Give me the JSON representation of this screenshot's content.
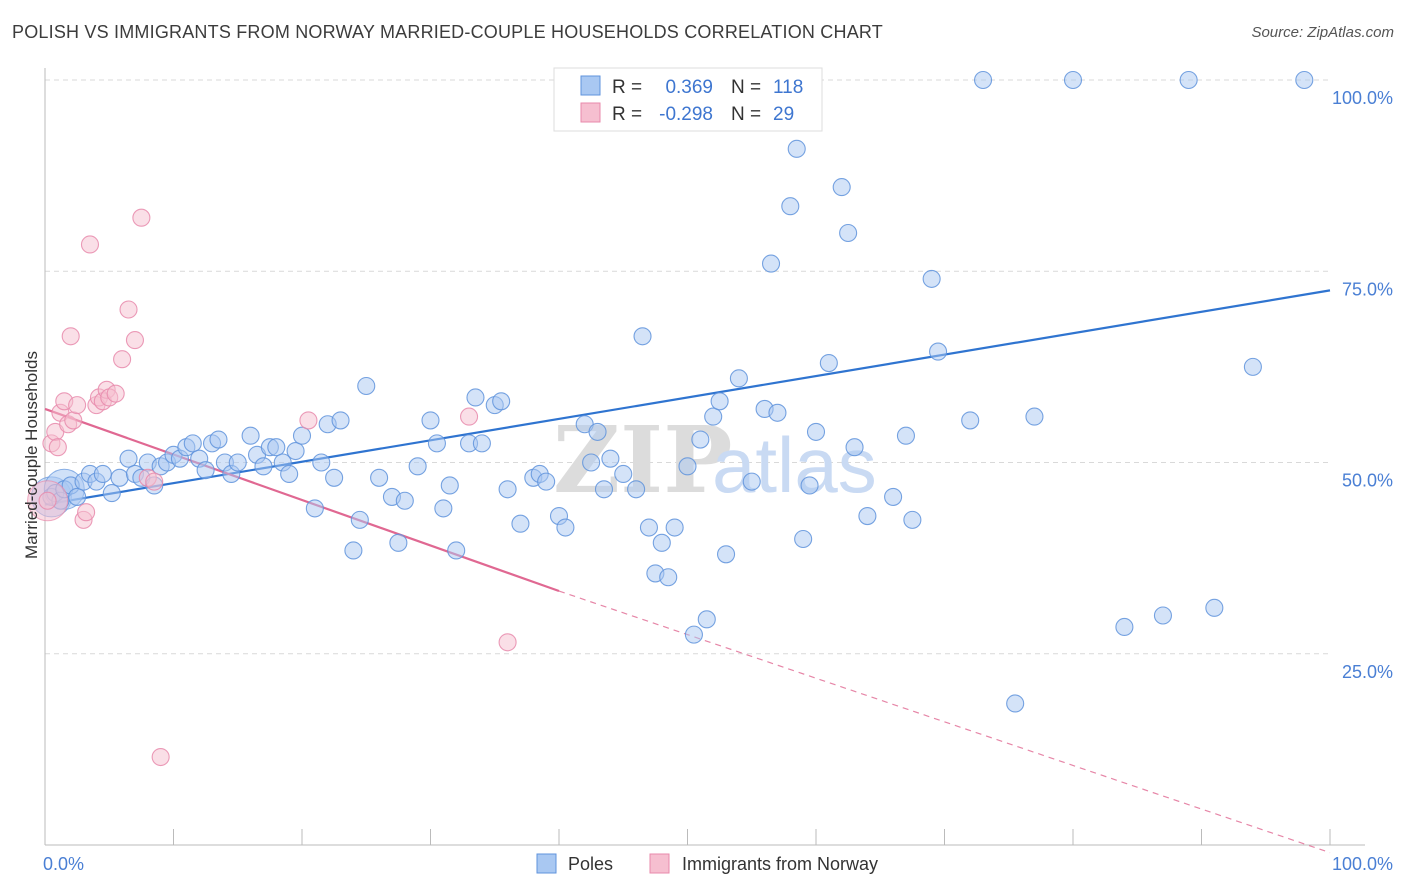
{
  "title": "POLISH VS IMMIGRANTS FROM NORWAY MARRIED-COUPLE HOUSEHOLDS CORRELATION CHART",
  "source": "Source: ZipAtlas.com",
  "watermark": {
    "zip": "ZIP",
    "atlas": "atlas"
  },
  "colors": {
    "blue_fill": "#a9c8f2",
    "blue_stroke": "#5f93dc",
    "blue_line": "#2f74d0",
    "pink_fill": "#f6bfd0",
    "pink_stroke": "#e88aab",
    "pink_line": "#e06892",
    "grid": "#d9d9d9",
    "tick_label": "#4a7fd4"
  },
  "legend": {
    "rows": [
      {
        "r_label": "R =",
        "r_value": "0.369",
        "n_label": "N =",
        "n_value": "118",
        "color": "blue"
      },
      {
        "r_label": "R =",
        "r_value": "-0.298",
        "n_label": "N =",
        "n_value": "29",
        "color": "pink"
      }
    ]
  },
  "chart_data": {
    "type": "scatter",
    "title": "POLISH VS IMMIGRANTS FROM NORWAY MARRIED-COUPLE HOUSEHOLDS CORRELATION CHART",
    "xlabel": "",
    "ylabel": "Married-couple Households",
    "xlim": [
      0,
      100
    ],
    "ylim": [
      0,
      100
    ],
    "x_tick_labels": [
      "0.0%",
      "100.0%"
    ],
    "y_tick_labels": [
      "25.0%",
      "50.0%",
      "75.0%",
      "100.0%"
    ],
    "y_ticks": [
      25,
      50,
      75,
      100
    ],
    "grid": true,
    "legend_position": "top-center",
    "series": [
      {
        "name": "Poles",
        "color": "blue",
        "regression": {
          "x0": 0,
          "y0": 44.5,
          "x1": 100,
          "y1": 72.5,
          "dashed_from": null
        },
        "points": [
          [
            0.5,
            45.5
          ],
          [
            0.8,
            46
          ],
          [
            1.2,
            45
          ],
          [
            1.5,
            46.5
          ],
          [
            2,
            47
          ],
          [
            2.5,
            45.5
          ],
          [
            3,
            47.5
          ],
          [
            3.5,
            48.5
          ],
          [
            4,
            47.5
          ],
          [
            4.5,
            48.5
          ],
          [
            5.2,
            46
          ],
          [
            5.8,
            48
          ],
          [
            6.5,
            50.5
          ],
          [
            7,
            48.5
          ],
          [
            7.5,
            48
          ],
          [
            8,
            50
          ],
          [
            8.5,
            47
          ],
          [
            9,
            49.5
          ],
          [
            9.5,
            50
          ],
          [
            10,
            51
          ],
          [
            10.5,
            50.5
          ],
          [
            11,
            52
          ],
          [
            11.5,
            52.5
          ],
          [
            12,
            50.5
          ],
          [
            12.5,
            49
          ],
          [
            13,
            52.5
          ],
          [
            13.5,
            53
          ],
          [
            14,
            50
          ],
          [
            14.5,
            48.5
          ],
          [
            15,
            50
          ],
          [
            16,
            53.5
          ],
          [
            16.5,
            51
          ],
          [
            17,
            49.5
          ],
          [
            17.5,
            52
          ],
          [
            18,
            52
          ],
          [
            18.5,
            50
          ],
          [
            19,
            48.5
          ],
          [
            19.5,
            51.5
          ],
          [
            20,
            53.5
          ],
          [
            21,
            44
          ],
          [
            21.5,
            50
          ],
          [
            22,
            55
          ],
          [
            22.5,
            48
          ],
          [
            23,
            55.5
          ],
          [
            24,
            38.5
          ],
          [
            24.5,
            42.5
          ],
          [
            25,
            60
          ],
          [
            26,
            48
          ],
          [
            27,
            45.5
          ],
          [
            27.5,
            39.5
          ],
          [
            28,
            45
          ],
          [
            29,
            49.5
          ],
          [
            30,
            55.5
          ],
          [
            30.5,
            52.5
          ],
          [
            31,
            44
          ],
          [
            31.5,
            47
          ],
          [
            32,
            38.5
          ],
          [
            33,
            52.5
          ],
          [
            33.5,
            58.5
          ],
          [
            34,
            52.5
          ],
          [
            35,
            57.5
          ],
          [
            35.5,
            58
          ],
          [
            36,
            46.5
          ],
          [
            37,
            42
          ],
          [
            38,
            48
          ],
          [
            38.5,
            48.5
          ],
          [
            39,
            47.5
          ],
          [
            40,
            43
          ],
          [
            40.5,
            41.5
          ],
          [
            42,
            55
          ],
          [
            42.5,
            50
          ],
          [
            43,
            54
          ],
          [
            43.5,
            46.5
          ],
          [
            44,
            50.5
          ],
          [
            45,
            48.5
          ],
          [
            46,
            46.5
          ],
          [
            46.5,
            66.5
          ],
          [
            47,
            41.5
          ],
          [
            47.5,
            35.5
          ],
          [
            48,
            39.5
          ],
          [
            48.5,
            35
          ],
          [
            49,
            41.5
          ],
          [
            50,
            49.5
          ],
          [
            50.5,
            27.5
          ],
          [
            51,
            53
          ],
          [
            51.5,
            29.5
          ],
          [
            52,
            56
          ],
          [
            52.5,
            58
          ],
          [
            53,
            38
          ],
          [
            54,
            61
          ],
          [
            55,
            47.5
          ],
          [
            56,
            57
          ],
          [
            56.5,
            76
          ],
          [
            57,
            56.5
          ],
          [
            58,
            83.5
          ],
          [
            58.5,
            91
          ],
          [
            59,
            40
          ],
          [
            59.5,
            47
          ],
          [
            60,
            54
          ],
          [
            61,
            63
          ],
          [
            62,
            86
          ],
          [
            62.5,
            80
          ],
          [
            63,
            52
          ],
          [
            64,
            43
          ],
          [
            66,
            45.5
          ],
          [
            67,
            53.5
          ],
          [
            67.5,
            42.5
          ],
          [
            69,
            74
          ],
          [
            69.5,
            64.5
          ],
          [
            72,
            55.5
          ],
          [
            73,
            100
          ],
          [
            75.5,
            18.5
          ],
          [
            77,
            56
          ],
          [
            80,
            100
          ],
          [
            84,
            28.5
          ],
          [
            87,
            30
          ],
          [
            89,
            100
          ],
          [
            91,
            31
          ],
          [
            94,
            62.5
          ],
          [
            98,
            100
          ]
        ],
        "big_points": [
          [
            0.5,
            45.5
          ],
          [
            1.5,
            46.5
          ]
        ]
      },
      {
        "name": "Immigrants from Norway",
        "color": "pink",
        "regression": {
          "x0": 0,
          "y0": 57,
          "x1": 40,
          "y1": 33.2,
          "dashed_to_x": 100,
          "dashed_to_y": -1
        },
        "points": [
          [
            0.2,
            45
          ],
          [
            0.5,
            52.5
          ],
          [
            0.8,
            54
          ],
          [
            1,
            52
          ],
          [
            1.2,
            56.5
          ],
          [
            1.5,
            58
          ],
          [
            1.8,
            55
          ],
          [
            2,
            66.5
          ],
          [
            2.2,
            55.5
          ],
          [
            2.5,
            57.5
          ],
          [
            3,
            42.5
          ],
          [
            3.2,
            43.5
          ],
          [
            3.5,
            78.5
          ],
          [
            4,
            57.5
          ],
          [
            4.2,
            58.5
          ],
          [
            4.5,
            58
          ],
          [
            4.8,
            59.5
          ],
          [
            5,
            58.5
          ],
          [
            5.5,
            59
          ],
          [
            6,
            63.5
          ],
          [
            6.5,
            70
          ],
          [
            7,
            66
          ],
          [
            7.5,
            82
          ],
          [
            8,
            48
          ],
          [
            8.5,
            47.5
          ],
          [
            9,
            11.5
          ],
          [
            20.5,
            55.5
          ],
          [
            33,
            56
          ],
          [
            36,
            26.5
          ]
        ],
        "big_points": [
          [
            0.2,
            45
          ]
        ]
      }
    ]
  },
  "bottom_legend": {
    "series1": "Poles",
    "series2": "Immigrants from Norway"
  }
}
